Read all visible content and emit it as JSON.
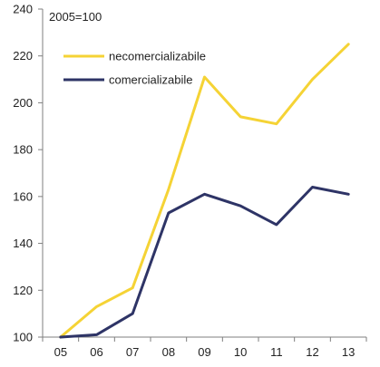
{
  "chart_data": {
    "type": "line",
    "title": "",
    "annotation": "2005=100",
    "xlabel": "",
    "ylabel": "",
    "categories": [
      "05",
      "06",
      "07",
      "08",
      "09",
      "10",
      "11",
      "12",
      "13"
    ],
    "ylim": [
      100,
      240
    ],
    "yticks": [
      100,
      120,
      140,
      160,
      180,
      200,
      220,
      240
    ],
    "grid": false,
    "legend_position": "top-left",
    "series": [
      {
        "name": "necomercializabile",
        "color": "#F5D335",
        "values": [
          100,
          113,
          121,
          163,
          211,
          194,
          191,
          210,
          225
        ]
      },
      {
        "name": "comercializabile",
        "color": "#2E3466",
        "values": [
          100,
          101,
          110,
          153,
          161,
          156,
          148,
          164,
          161
        ]
      }
    ]
  }
}
